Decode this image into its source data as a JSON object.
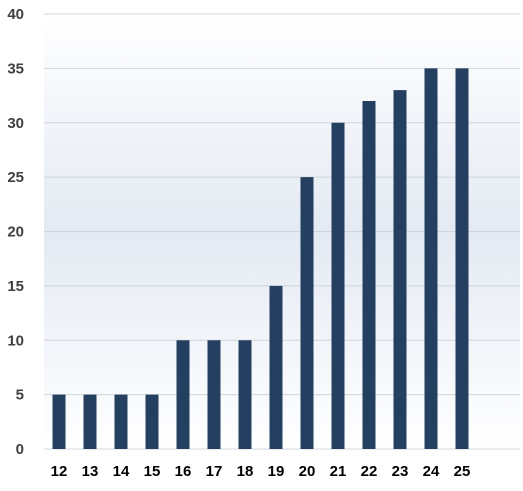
{
  "chart_data": {
    "type": "bar",
    "title": "",
    "xlabel": "",
    "ylabel": "",
    "categories": [
      "12",
      "13",
      "14",
      "15",
      "16",
      "17",
      "18",
      "19",
      "20",
      "21",
      "22",
      "23",
      "24",
      "25"
    ],
    "values": [
      5,
      5,
      5,
      5,
      10,
      10,
      10,
      15,
      25,
      30,
      32,
      33,
      35,
      35
    ],
    "ylim": [
      0,
      40
    ],
    "yticks": [
      0,
      5,
      10,
      15,
      20,
      25,
      30,
      35,
      40
    ],
    "grid": true,
    "legend": "none",
    "colors": {
      "bar": "#243f60",
      "gridline": "#d0d5dc",
      "plot_bg_edge": "#ffffff",
      "plot_bg_center": "#e4eaf3"
    }
  }
}
